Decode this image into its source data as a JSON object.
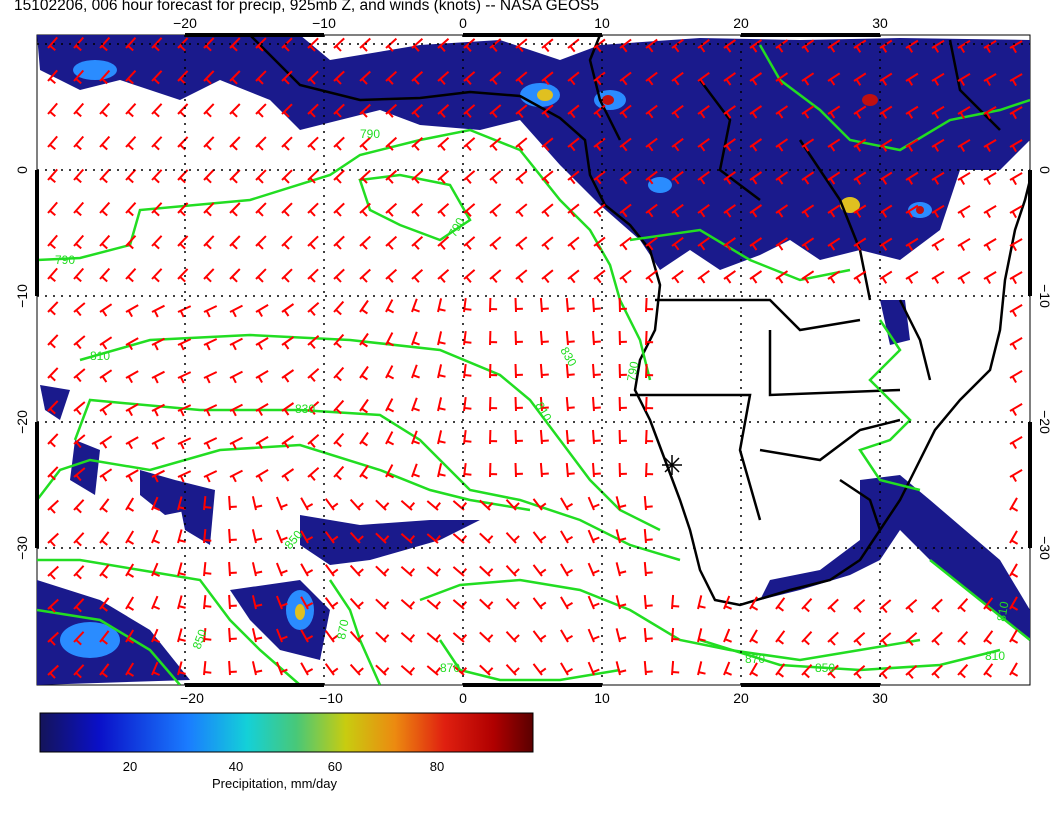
{
  "title": "15102206, 006 hour forecast for precip, 925mb Z, and winds (knots) -- NASA GEOS5",
  "map": {
    "lon_ticks": [
      "−20",
      "−10",
      "0",
      "10",
      "20",
      "30"
    ],
    "lat_ticks": [
      "0",
      "−10",
      "−20",
      "−30"
    ],
    "contour_labels": [
      "790",
      "790",
      "790",
      "810",
      "810",
      "830",
      "830",
      "850",
      "850",
      "870",
      "870",
      "870",
      "850",
      "810",
      "810",
      "790"
    ],
    "colors": {
      "wind_barbs": "#ff0000",
      "contours": "#22dd22",
      "precip_low": "#1a1a8c",
      "precip_mid": "#2a8cff",
      "precip_high": "#e0c020",
      "precip_max": "#c01010",
      "coastline": "#000000"
    }
  },
  "colorbar": {
    "ticks": [
      "20",
      "40",
      "60",
      "80"
    ],
    "label": "Precipitation, mm/day"
  }
}
